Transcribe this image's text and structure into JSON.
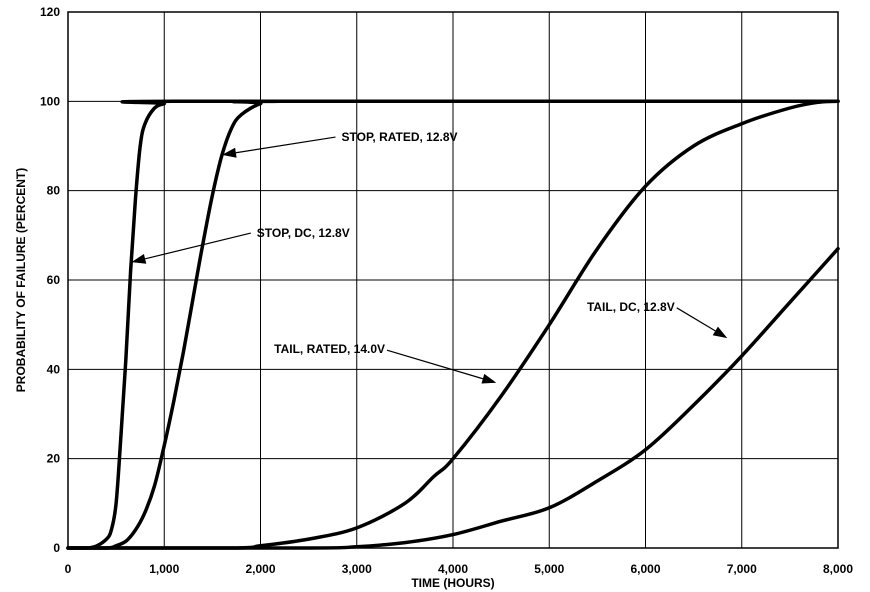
{
  "chart_data": {
    "type": "line",
    "title": "",
    "xlabel": "TIME (HOURS)",
    "ylabel": "PROBABILITY OF FAILURE (PERCENT)",
    "xlim": [
      0,
      8000
    ],
    "ylim": [
      0,
      120
    ],
    "grid": true,
    "x_ticks": [
      0,
      1000,
      2000,
      3000,
      4000,
      5000,
      6000,
      7000,
      8000
    ],
    "x_tick_labels": [
      "0",
      "1,000",
      "2,000",
      "3,000",
      "4,000",
      "5,000",
      "6,000",
      "7,000",
      "8,000"
    ],
    "y_ticks": [
      0,
      20,
      40,
      60,
      80,
      100,
      120
    ],
    "y_tick_labels": [
      "0",
      "20",
      "40",
      "60",
      "80",
      "100",
      "120"
    ],
    "series": [
      {
        "name": "STOP, DC, 12.8V",
        "x": [
          0,
          200,
          300,
          400,
          450,
          500,
          550,
          600,
          650,
          700,
          750,
          800,
          900,
          1000,
          1100,
          8000
        ],
        "y": [
          0,
          0,
          0.5,
          2,
          4,
          10,
          25,
          42,
          62,
          78,
          90,
          95,
          98.5,
          99.5,
          100,
          100
        ]
      },
      {
        "name": "STOP, RATED, 12.8V",
        "x": [
          0,
          400,
          500,
          600,
          700,
          800,
          900,
          1000,
          1100,
          1200,
          1300,
          1400,
          1500,
          1600,
          1700,
          1800,
          2000,
          2200,
          8000
        ],
        "y": [
          0,
          0,
          0.5,
          1.5,
          4,
          8,
          14,
          23,
          33,
          44,
          56,
          68,
          79,
          88,
          94,
          97,
          99.5,
          100,
          100
        ]
      },
      {
        "name": "TAIL, RATED, 14.0V",
        "x": [
          0,
          1700,
          2000,
          2500,
          3000,
          3500,
          3800,
          4000,
          4500,
          5000,
          5500,
          6000,
          6500,
          7000,
          7500,
          7800,
          8000
        ],
        "y": [
          0,
          0,
          0.5,
          2,
          4.5,
          10,
          16,
          20,
          34,
          50,
          67,
          81,
          90,
          95,
          98.5,
          99.8,
          100
        ]
      },
      {
        "name": "TAIL, DC, 12.8V",
        "x": [
          0,
          2500,
          3000,
          3500,
          4000,
          4500,
          5000,
          5500,
          6000,
          6500,
          7000,
          7500,
          8000
        ],
        "y": [
          0,
          0,
          0.3,
          1.2,
          3,
          6,
          9,
          15,
          22,
          32,
          43,
          55,
          67
        ]
      }
    ],
    "annotations": [
      {
        "text": "STOP, RATED, 12.8V",
        "arrow_to_x": 1600,
        "arrow_to_y": 88,
        "text_x": 2800,
        "text_y": 92
      },
      {
        "text": "STOP, DC, 12.8V",
        "arrow_to_x": 660,
        "arrow_to_y": 64,
        "text_x": 1920,
        "text_y": 70.5
      },
      {
        "text": "TAIL, RATED, 14.0V",
        "arrow_to_x": 4450,
        "arrow_to_y": 37,
        "text_x": 2100,
        "text_y": 44.5
      },
      {
        "text": "TAIL, DC, 12.8V",
        "arrow_to_x": 6850,
        "arrow_to_y": 47,
        "text_x": 5350,
        "text_y": 54
      }
    ]
  }
}
